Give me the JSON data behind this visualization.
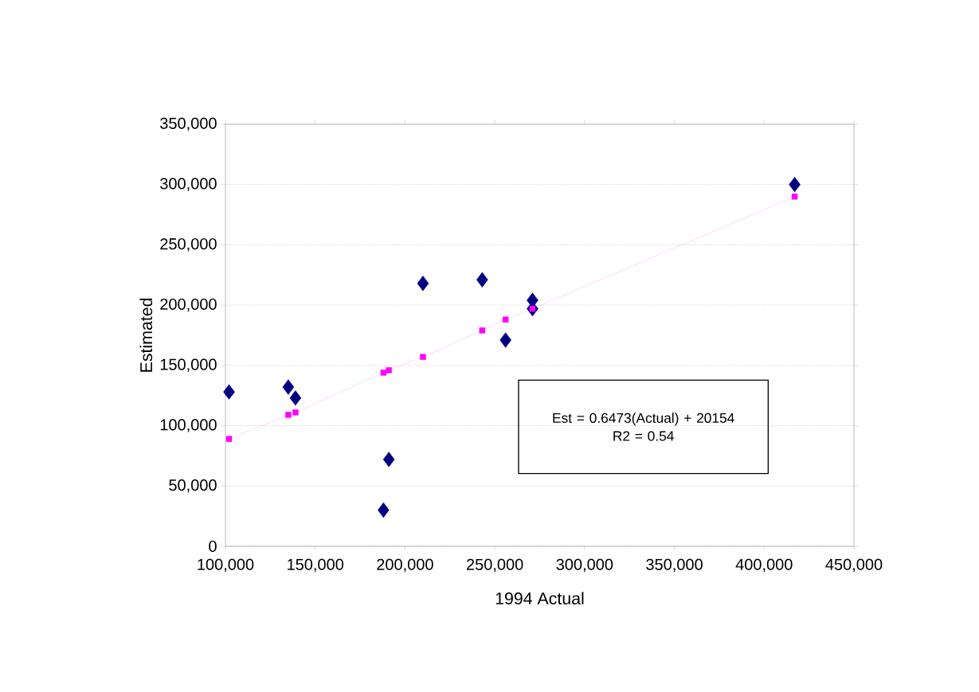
{
  "chart_data": {
    "type": "scatter",
    "xlabel": "1994 Actual",
    "ylabel": "Estimated",
    "xlim": [
      100000,
      450000
    ],
    "xticks": [
      {
        "value": 100000,
        "label": "100,000"
      },
      {
        "value": 150000,
        "label": "150,000"
      },
      {
        "value": 200000,
        "label": "200,000"
      },
      {
        "value": 250000,
        "label": "250,000"
      },
      {
        "value": 300000,
        "label": "300,000"
      },
      {
        "value": 350000,
        "label": "350,000"
      },
      {
        "value": 400000,
        "label": "400,000"
      },
      {
        "value": 450000,
        "label": "450,000"
      }
    ],
    "ylim": [
      0,
      350000
    ],
    "yticks": [
      0,
      {
        "value": 50000,
        "label": "50,000"
      },
      {
        "value": 100000,
        "label": "100,000"
      },
      {
        "value": 150000,
        "label": "150,000"
      },
      {
        "value": 200000,
        "label": "200,000"
      },
      {
        "value": 250000,
        "label": "250,000"
      },
      {
        "value": 300000,
        "label": "300,000"
      },
      {
        "value": 350000,
        "label": "350,000"
      }
    ],
    "grid": "y",
    "series": [
      {
        "color": "#000080",
        "marker": "diamond",
        "x": [
          102000,
          135000,
          139000,
          188000,
          191000,
          210000,
          243000,
          256000,
          271000,
          271000,
          417000
        ],
        "values": [
          128000,
          132000,
          123000,
          30000,
          72000,
          218000,
          221000,
          171000,
          204000,
          197000,
          300000
        ]
      },
      {
        "type": "line",
        "color": "#ff00ff",
        "marker": "square",
        "line_style": "dotted",
        "x": [
          102000,
          135000,
          139000,
          188000,
          191000,
          210000,
          243000,
          256000,
          271000,
          417000
        ],
        "values": [
          89000,
          109000,
          111000,
          144000,
          146000,
          157000,
          179000,
          188000,
          197000,
          290000
        ]
      }
    ],
    "annotations": [
      "Est = 0.6473(Actual) + 20154",
      "R2 = 0.54"
    ]
  }
}
